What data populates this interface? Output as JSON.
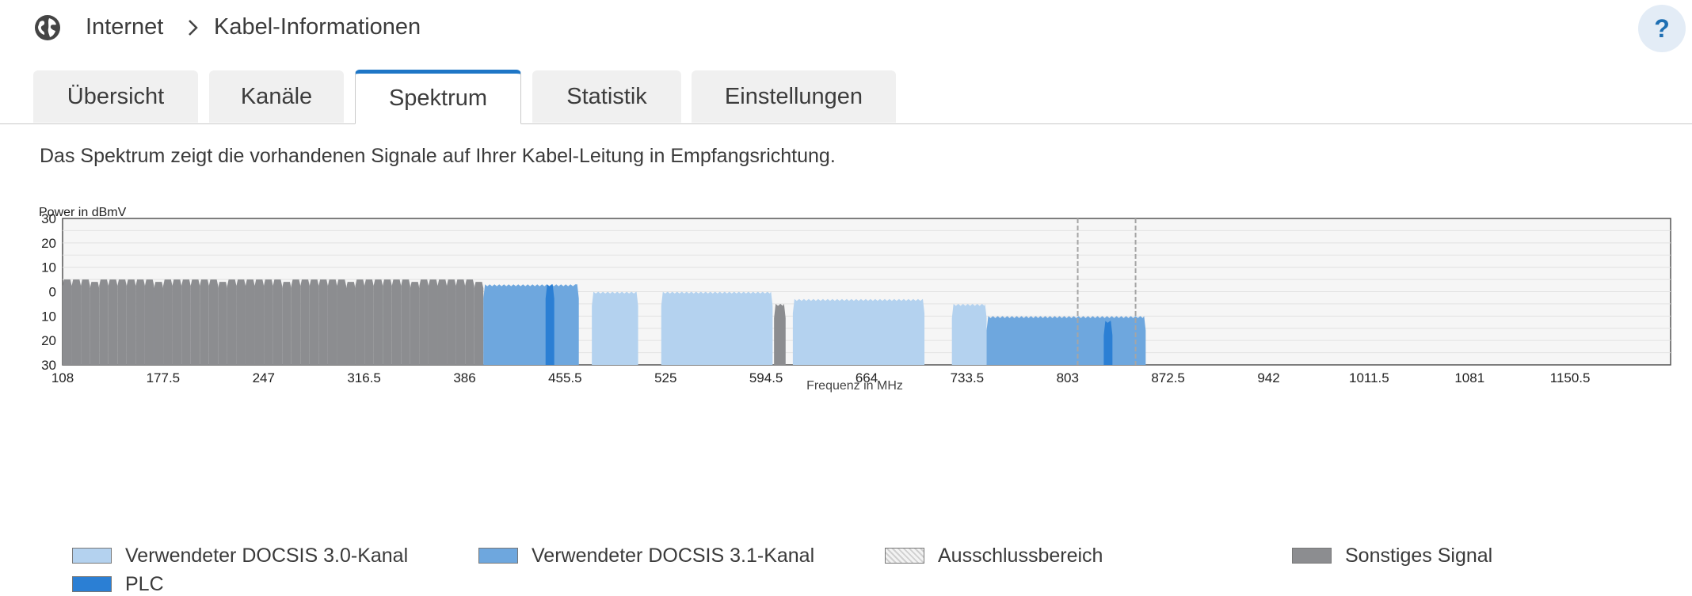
{
  "header": {
    "breadcrumb_root": "Internet",
    "breadcrumb_current": "Kabel-Informationen",
    "help_label": "?"
  },
  "tabs": [
    {
      "label": "Übersicht",
      "active": false
    },
    {
      "label": "Kanäle",
      "active": false
    },
    {
      "label": "Spektrum",
      "active": true
    },
    {
      "label": "Statistik",
      "active": false
    },
    {
      "label": "Einstellungen",
      "active": false
    }
  ],
  "description": "Das Spektrum zeigt die vorhandenen Signale auf Ihrer Kabel-Leitung in Empfangsrichtung.",
  "colors": {
    "accent": "#1e76c6",
    "docsis30": "#b4d2ef",
    "docsis31": "#6ea7de",
    "plc": "#2b7fd4",
    "other": "#8c8d90"
  },
  "chart_data": {
    "type": "area",
    "ylabel": "Power in dBmV",
    "xlabel": "Frequenz in MHz",
    "xlim": [
      108,
      1220
    ],
    "ylim": [
      -30,
      30
    ],
    "y_tick_labels": [
      "30",
      "20",
      "10",
      "0",
      "10",
      "20",
      "30"
    ],
    "x_tick_labels": [
      "108",
      "177.5",
      "247",
      "316.5",
      "386",
      "455.5",
      "525",
      "594.5",
      "664",
      "733.5",
      "803",
      "872.5",
      "942",
      "1011.5",
      "1081",
      "1150.5"
    ],
    "grid": true,
    "series": [
      {
        "name": "Sonstiges Signal",
        "segments": [
          {
            "start": 108,
            "end": 399,
            "level": 5,
            "channels": 46
          },
          {
            "start": 600,
            "end": 608,
            "level": -5
          }
        ]
      },
      {
        "name": "Verwendeter DOCSIS 3.0-Kanal",
        "segments": [
          {
            "start": 474,
            "end": 506,
            "level": 0
          },
          {
            "start": 522,
            "end": 599,
            "level": 0
          },
          {
            "start": 613,
            "end": 704,
            "level": -3
          },
          {
            "start": 723,
            "end": 747,
            "level": -5
          }
        ]
      },
      {
        "name": "Verwendeter DOCSIS 3.1-Kanal",
        "segments": [
          {
            "start": 399,
            "end": 465,
            "level": 3
          },
          {
            "start": 747,
            "end": 857,
            "level": -10
          }
        ]
      },
      {
        "name": "PLC",
        "segments": [
          {
            "start": 442,
            "end": 448,
            "level": 3
          },
          {
            "start": 828,
            "end": 834,
            "level": -12
          }
        ]
      },
      {
        "name": "Ausschlussbereich",
        "segments": [
          {
            "start": 810,
            "end": 811
          },
          {
            "start": 850,
            "end": 851
          }
        ]
      }
    ]
  },
  "legend": [
    {
      "label": "Verwendeter DOCSIS 3.0-Kanal",
      "color": "#b4d2ef"
    },
    {
      "label": "Verwendeter DOCSIS 3.1-Kanal",
      "color": "#6ea7de"
    },
    {
      "label": "Ausschlussbereich",
      "color": "#e6e6e6"
    },
    {
      "label": "Sonstiges Signal",
      "color": "#8c8d90"
    },
    {
      "label": "PLC",
      "color": "#2b7fd4"
    }
  ]
}
